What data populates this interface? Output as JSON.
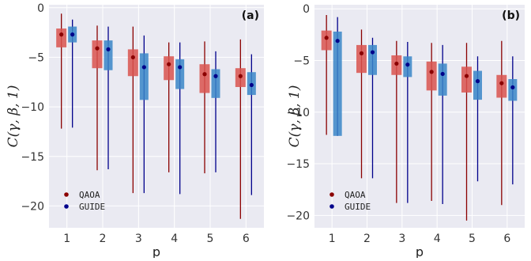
{
  "colors": {
    "background": "#ffffff",
    "plot_bg": "#eaeaf2",
    "grid": "#ffffff",
    "qaoa": "#8b0000",
    "guide": "#00008b",
    "qaoa_box": "#d9534f",
    "guide_box": "#3a86c8"
  },
  "chart_data": [
    {
      "type": "box",
      "panel_label": "(a)",
      "xlabel": "p",
      "ylabel": "C(γ, β, 1)",
      "categories": [
        "1",
        "2",
        "3",
        "4",
        "5",
        "6"
      ],
      "yticks": [
        "0",
        "−5",
        "−10",
        "−15",
        "−20"
      ],
      "ytick_values": [
        0,
        -5,
        -10,
        -15,
        -20
      ],
      "ylim": [
        -22.2,
        0.3
      ],
      "legend_position": "lower-left",
      "grid": true,
      "series": [
        {
          "name": "QAOA",
          "color": "#8b0000",
          "box_color": "#d9534f",
          "median": [
            -2.7,
            -4.1,
            -5.0,
            -5.7,
            -6.7,
            -6.9
          ],
          "q1": [
            -4.0,
            -6.1,
            -6.9,
            -7.3,
            -8.6,
            -8.0
          ],
          "q3": [
            -2.1,
            -3.3,
            -4.2,
            -4.9,
            -5.7,
            -6.1
          ],
          "min": [
            -12.2,
            -16.4,
            -18.7,
            -16.6,
            -16.7,
            -21.3
          ],
          "max": [
            -0.6,
            -1.8,
            -1.9,
            -3.5,
            -3.4,
            -3.2
          ]
        },
        {
          "name": "GUIDE",
          "color": "#00008b",
          "box_color": "#3a86c8",
          "median": [
            -2.7,
            -4.2,
            -6.0,
            -6.0,
            -6.9,
            -7.8
          ],
          "q1": [
            -3.5,
            -6.3,
            -9.3,
            -8.2,
            -9.1,
            -8.8
          ],
          "q3": [
            -1.9,
            -3.3,
            -4.6,
            -5.2,
            -6.2,
            -6.5
          ],
          "min": [
            -12.1,
            -16.3,
            -18.7,
            -18.8,
            -16.6,
            -18.9
          ],
          "max": [
            -1.2,
            -1.9,
            -2.8,
            -3.5,
            -4.4,
            -4.7
          ]
        }
      ]
    },
    {
      "type": "box",
      "panel_label": "(b)",
      "xlabel": "p",
      "ylabel": "C(γ, β, 1)",
      "categories": [
        "1",
        "2",
        "3",
        "4",
        "5",
        "6"
      ],
      "yticks": [
        "0",
        "−5",
        "−10",
        "−15",
        "−20"
      ],
      "ytick_values": [
        0,
        -5,
        -10,
        -15,
        -20
      ],
      "ylim": [
        -21.2,
        0.4
      ],
      "legend_position": "lower-left",
      "grid": true,
      "series": [
        {
          "name": "QAOA",
          "color": "#8b0000",
          "box_color": "#d9534f",
          "median": [
            -2.8,
            -4.3,
            -5.3,
            -6.1,
            -6.5,
            -7.2
          ],
          "q1": [
            -4.0,
            -6.2,
            -6.4,
            -7.9,
            -8.1,
            -8.6
          ],
          "q3": [
            -2.1,
            -3.5,
            -4.5,
            -5.1,
            -5.6,
            -6.4
          ],
          "min": [
            -12.2,
            -16.4,
            -18.8,
            -18.6,
            -20.5,
            -19.0
          ],
          "max": [
            -0.6,
            -2.0,
            -3.1,
            -3.3,
            -3.3,
            -3.1
          ]
        },
        {
          "name": "GUIDE",
          "color": "#00008b",
          "box_color": "#3a86c8",
          "median": [
            -3.1,
            -4.2,
            -5.4,
            -6.3,
            -7.0,
            -7.6
          ],
          "q1": [
            -12.3,
            -6.4,
            -6.6,
            -8.4,
            -8.8,
            -8.9
          ],
          "q3": [
            -2.2,
            -3.5,
            -4.6,
            -5.3,
            -6.0,
            -6.8
          ],
          "min": [
            -12.3,
            -16.4,
            -18.8,
            -18.9,
            -16.7,
            -17.0
          ],
          "max": [
            -0.8,
            -2.8,
            -3.2,
            -3.5,
            -4.6,
            -4.6
          ]
        }
      ]
    }
  ]
}
